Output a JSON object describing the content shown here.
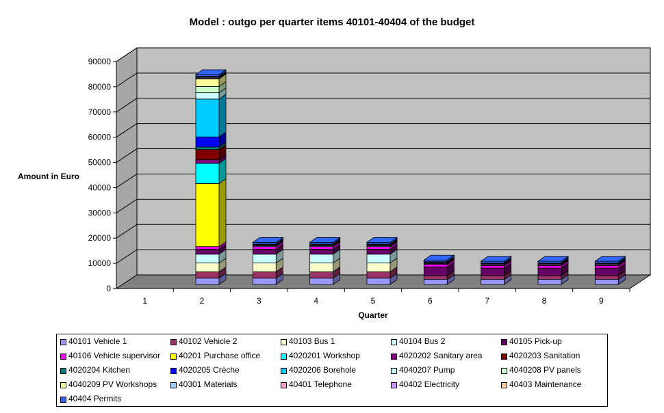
{
  "chart_data": {
    "type": "bar",
    "stacked": true,
    "three_d": true,
    "title": "Model : outgo per quarter items 40101-40404 of the budget",
    "xlabel": "Quarter",
    "ylabel": "Amount in Euro",
    "ylim": [
      0,
      90000
    ],
    "yticks": [
      "0",
      "10000",
      "20000",
      "30000",
      "40000",
      "50000",
      "60000",
      "70000",
      "80000",
      "90000"
    ],
    "categories": [
      "1",
      "2",
      "3",
      "4",
      "5",
      "6",
      "7",
      "8",
      "9"
    ],
    "grid": true,
    "legend_position": "bottom",
    "series": [
      {
        "name": "40101 Vehicle 1",
        "color": "#9999ff",
        "values": [
          0,
          2500,
          2500,
          2500,
          2500,
          2000,
          2000,
          2000,
          2000
        ]
      },
      {
        "name": "40102 Vehicle 2",
        "color": "#993366",
        "values": [
          0,
          2500,
          2500,
          2500,
          2500,
          1500,
          1500,
          1500,
          1500
        ]
      },
      {
        "name": "40103 Bus 1",
        "color": "#ffffcc",
        "values": [
          0,
          3500,
          3500,
          3500,
          3500,
          0,
          0,
          0,
          0
        ]
      },
      {
        "name": "40104 Bus 2",
        "color": "#ccffff",
        "values": [
          0,
          3500,
          3500,
          3500,
          3500,
          0,
          0,
          0,
          0
        ]
      },
      {
        "name": "40105 Pick-up",
        "color": "#660066",
        "values": [
          0,
          2000,
          2000,
          2000,
          2000,
          3500,
          3000,
          3000,
          3000
        ]
      },
      {
        "name": "40106 Vehicle supervisor",
        "color": "#ff00ff",
        "values": [
          0,
          1000,
          1000,
          1000,
          1000,
          1000,
          1000,
          1000,
          1000
        ]
      },
      {
        "name": "40201 Purchase office",
        "color": "#ffff00",
        "values": [
          0,
          25000,
          0,
          0,
          0,
          0,
          0,
          0,
          0
        ]
      },
      {
        "name": "4020201 Workshop",
        "color": "#00ffff",
        "values": [
          0,
          8000,
          0,
          0,
          0,
          0,
          0,
          0,
          0
        ]
      },
      {
        "name": "4020202 Sanitary area",
        "color": "#800080",
        "values": [
          0,
          1500,
          0,
          0,
          0,
          0,
          0,
          0,
          0
        ]
      },
      {
        "name": "4020203 Sanitation",
        "color": "#800000",
        "values": [
          0,
          4000,
          0,
          0,
          0,
          0,
          0,
          0,
          0
        ]
      },
      {
        "name": "4020204 Kitchen",
        "color": "#008080",
        "values": [
          0,
          1000,
          0,
          0,
          0,
          0,
          0,
          0,
          0
        ]
      },
      {
        "name": "4020205 Crèche",
        "color": "#0000ff",
        "values": [
          0,
          4000,
          0,
          0,
          0,
          0,
          0,
          0,
          0
        ]
      },
      {
        "name": "4020206 Borehole",
        "color": "#00ccff",
        "values": [
          0,
          15000,
          0,
          0,
          0,
          0,
          0,
          0,
          0
        ]
      },
      {
        "name": "4040207 Pump",
        "color": "#ccffff",
        "values": [
          0,
          2500,
          0,
          0,
          0,
          0,
          0,
          0,
          0
        ]
      },
      {
        "name": "4040208 PV panels",
        "color": "#ccffcc",
        "values": [
          0,
          2500,
          0,
          0,
          0,
          0,
          0,
          0,
          0
        ]
      },
      {
        "name": "4040209 PV Workshops",
        "color": "#ffff99",
        "values": [
          0,
          3000,
          0,
          0,
          0,
          0,
          0,
          0,
          0
        ]
      },
      {
        "name": "40301 Materials",
        "color": "#99ccff",
        "values": [
          0,
          300,
          300,
          300,
          300,
          300,
          300,
          300,
          300
        ]
      },
      {
        "name": "40401 Telephone",
        "color": "#ff99cc",
        "values": [
          0,
          300,
          300,
          300,
          300,
          300,
          300,
          300,
          300
        ]
      },
      {
        "name": "40402 Electricity",
        "color": "#cc99ff",
        "values": [
          0,
          200,
          200,
          200,
          200,
          200,
          200,
          200,
          200
        ]
      },
      {
        "name": "40403 Maintenance",
        "color": "#ffcc99",
        "values": [
          0,
          200,
          200,
          200,
          200,
          200,
          200,
          200,
          200
        ]
      },
      {
        "name": "40404 Permits",
        "color": "#3366ff",
        "values": [
          0,
          700,
          700,
          700,
          700,
          700,
          700,
          700,
          700
        ]
      }
    ]
  }
}
